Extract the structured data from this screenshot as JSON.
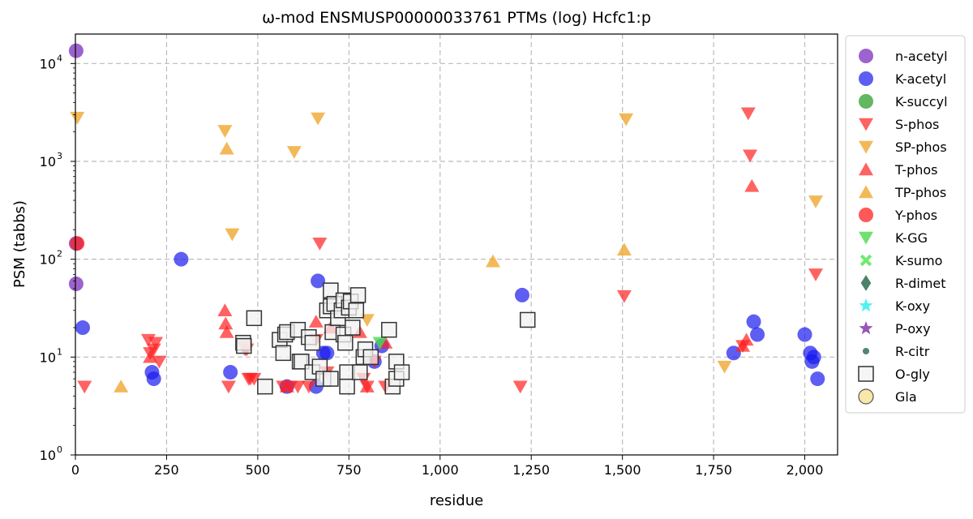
{
  "chart_data": {
    "type": "scatter",
    "title": "ω-mod ENSMUSP00000033761 PTMs (log) Hcfc1:p",
    "xlabel": "residue",
    "ylabel": "PSM (tabbs)",
    "xlim": [
      0,
      2090
    ],
    "ylim": [
      1,
      20000
    ],
    "yscale": "log",
    "grid": true,
    "legend_position": "outside-right",
    "x_ticks": [
      0,
      250,
      500,
      750,
      1000,
      1250,
      1500,
      1750,
      2000
    ],
    "x_tick_labels": [
      "0",
      "250",
      "500",
      "750",
      "1,000",
      "1,250",
      "1,500",
      "1,750",
      "2,000"
    ],
    "y_ticks": [
      1,
      10,
      100,
      1000,
      10000
    ],
    "y_tick_labels": [
      {
        "base": "10",
        "exp": "0"
      },
      {
        "base": "10",
        "exp": "1"
      },
      {
        "base": "10",
        "exp": "2"
      },
      {
        "base": "10",
        "exp": "3"
      },
      {
        "base": "10",
        "exp": "4"
      }
    ],
    "series": [
      {
        "name": "n-acetyl",
        "marker": "circle",
        "color": "#7b2fbe",
        "fill_opacity": 0.75,
        "points": [
          [
            2,
            13500
          ],
          [
            2,
            145
          ],
          [
            2,
            56
          ]
        ]
      },
      {
        "name": "K-acetyl",
        "marker": "circle",
        "color": "#1a1aee",
        "fill_opacity": 0.7,
        "points": [
          [
            20,
            20
          ],
          [
            210,
            7
          ],
          [
            215,
            6
          ],
          [
            290,
            100
          ],
          [
            425,
            7
          ],
          [
            580,
            5
          ],
          [
            660,
            5
          ],
          [
            665,
            60
          ],
          [
            680,
            11
          ],
          [
            690,
            11
          ],
          [
            820,
            9
          ],
          [
            840,
            13
          ],
          [
            1225,
            43
          ],
          [
            1805,
            11
          ],
          [
            1860,
            23
          ],
          [
            1870,
            17
          ],
          [
            2000,
            17
          ],
          [
            2015,
            11
          ],
          [
            2020,
            9
          ],
          [
            2025,
            10
          ],
          [
            2035,
            6
          ]
        ]
      },
      {
        "name": "K-succyl",
        "marker": "circle",
        "color": "#2ca02c",
        "fill_opacity": 0.75,
        "points": []
      },
      {
        "name": "S-phos",
        "marker": "triangle-down",
        "color": "#ff2020",
        "fill_opacity": 0.7,
        "points": [
          [
            25,
            5
          ],
          [
            200,
            15
          ],
          [
            205,
            11
          ],
          [
            215,
            12
          ],
          [
            220,
            14
          ],
          [
            230,
            9
          ],
          [
            420,
            5
          ],
          [
            460,
            13
          ],
          [
            465,
            12
          ],
          [
            470,
            12
          ],
          [
            475,
            6
          ],
          [
            480,
            6
          ],
          [
            490,
            6
          ],
          [
            570,
            5
          ],
          [
            590,
            5
          ],
          [
            610,
            5
          ],
          [
            640,
            5
          ],
          [
            660,
            15
          ],
          [
            670,
            145
          ],
          [
            690,
            7
          ],
          [
            790,
            6
          ],
          [
            800,
            5
          ],
          [
            820,
            9
          ],
          [
            850,
            5
          ],
          [
            1220,
            5
          ],
          [
            1505,
            42
          ],
          [
            1830,
            13
          ],
          [
            1845,
            3100
          ],
          [
            1850,
            1150
          ],
          [
            2030,
            70
          ]
        ]
      },
      {
        "name": "SP-phos",
        "marker": "triangle-down",
        "color": "#f0a830",
        "fill_opacity": 0.8,
        "points": [
          [
            5,
            2800
          ],
          [
            410,
            2050
          ],
          [
            430,
            180
          ],
          [
            600,
            1250
          ],
          [
            665,
            2750
          ],
          [
            800,
            24
          ],
          [
            1510,
            2700
          ],
          [
            1780,
            8
          ],
          [
            2030,
            390
          ]
        ]
      },
      {
        "name": "T-phos",
        "marker": "triangle-up",
        "color": "#ff2020",
        "fill_opacity": 0.7,
        "points": [
          [
            205,
            10
          ],
          [
            410,
            30
          ],
          [
            412,
            22
          ],
          [
            415,
            18
          ],
          [
            580,
            5
          ],
          [
            660,
            23
          ],
          [
            700,
            20
          ],
          [
            780,
            18
          ],
          [
            800,
            5
          ],
          [
            810,
            10
          ],
          [
            850,
            14
          ],
          [
            1830,
            13
          ],
          [
            1840,
            15
          ],
          [
            1855,
            560
          ]
        ]
      },
      {
        "name": "TP-phos",
        "marker": "triangle-up",
        "color": "#f0a830",
        "fill_opacity": 0.8,
        "points": [
          [
            125,
            5
          ],
          [
            415,
            1350
          ],
          [
            1145,
            95
          ],
          [
            1505,
            125
          ]
        ]
      },
      {
        "name": "Y-phos",
        "marker": "circle",
        "color": "#ff2020",
        "fill_opacity": 0.75,
        "points": [
          [
            5,
            145
          ]
        ]
      },
      {
        "name": "K-GG",
        "marker": "triangle-down",
        "color": "#4cd94c",
        "fill_opacity": 0.8,
        "points": [
          [
            835,
            14
          ]
        ]
      },
      {
        "name": "K-sumo",
        "marker": "x",
        "color": "#60e860",
        "fill_opacity": 0.9,
        "points": []
      },
      {
        "name": "R-dimet",
        "marker": "diamond",
        "color": "#2e6b50",
        "fill_opacity": 0.85,
        "points": []
      },
      {
        "name": "K-oxy",
        "marker": "star",
        "color": "#40f0f0",
        "fill_opacity": 0.9,
        "points": []
      },
      {
        "name": "P-oxy",
        "marker": "star",
        "color": "#8e44ad",
        "fill_opacity": 0.9,
        "points": []
      },
      {
        "name": "R-citr",
        "marker": "small-circle",
        "color": "#3e7a60",
        "fill_opacity": 0.9,
        "points": []
      },
      {
        "name": "O-gly",
        "marker": "square",
        "color": "#f2f2f2",
        "stroke": "#333333",
        "fill_opacity": 0.75,
        "points": [
          [
            460,
            14
          ],
          [
            462,
            13
          ],
          [
            490,
            25
          ],
          [
            520,
            5
          ],
          [
            560,
            15
          ],
          [
            570,
            11
          ],
          [
            575,
            17
          ],
          [
            580,
            18
          ],
          [
            610,
            19
          ],
          [
            615,
            9
          ],
          [
            620,
            9
          ],
          [
            640,
            16
          ],
          [
            650,
            14
          ],
          [
            650,
            7
          ],
          [
            670,
            8
          ],
          [
            680,
            6
          ],
          [
            690,
            30
          ],
          [
            700,
            48
          ],
          [
            700,
            33
          ],
          [
            700,
            6
          ],
          [
            705,
            18
          ],
          [
            710,
            35
          ],
          [
            720,
            25
          ],
          [
            730,
            30
          ],
          [
            735,
            38
          ],
          [
            735,
            17
          ],
          [
            740,
            14
          ],
          [
            745,
            7
          ],
          [
            745,
            5
          ],
          [
            750,
            32
          ],
          [
            755,
            37
          ],
          [
            760,
            20
          ],
          [
            770,
            30
          ],
          [
            775,
            43
          ],
          [
            780,
            7
          ],
          [
            790,
            10
          ],
          [
            795,
            12
          ],
          [
            810,
            10
          ],
          [
            860,
            19
          ],
          [
            870,
            5
          ],
          [
            880,
            6
          ],
          [
            880,
            9
          ],
          [
            895,
            7
          ],
          [
            1240,
            24
          ]
        ]
      },
      {
        "name": "Gla",
        "marker": "circle",
        "color": "#f8e4a0",
        "stroke": "#555555",
        "fill_opacity": 0.9,
        "points": []
      }
    ]
  }
}
